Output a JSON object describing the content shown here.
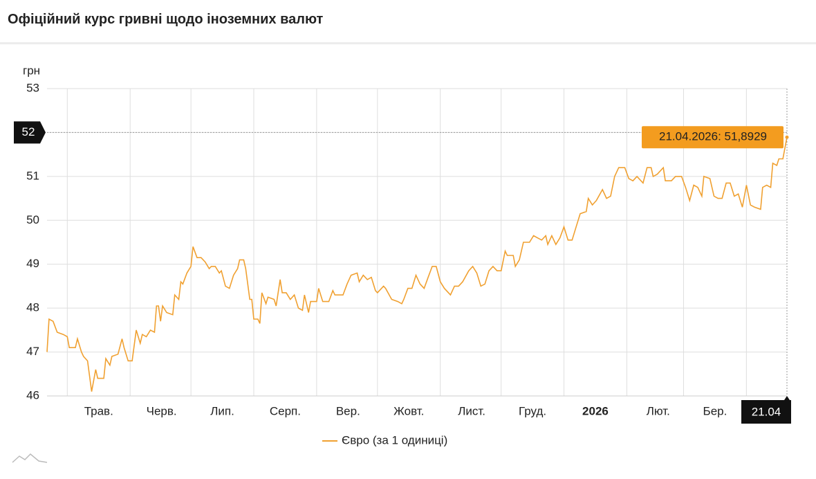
{
  "title": "Офіційний курс гривні щодо іноземних валют",
  "chart_data": {
    "type": "line",
    "y_label": "грн",
    "x": [
      0,
      1,
      3,
      5,
      8,
      10,
      11,
      14,
      15,
      17,
      18,
      20,
      22,
      24,
      25,
      28,
      29,
      31,
      32,
      35,
      37,
      38,
      40,
      42,
      44,
      46,
      47,
      49,
      51,
      53,
      54,
      55,
      56,
      57,
      59,
      62,
      63,
      65,
      66,
      67,
      69,
      71,
      72,
      74,
      76,
      78,
      80,
      81,
      83,
      85,
      86,
      88,
      90,
      92,
      94,
      95,
      97,
      98,
      100,
      101,
      102,
      104,
      105,
      106,
      108,
      109,
      112,
      113,
      115,
      116,
      118,
      120,
      122,
      124,
      126,
      127,
      129,
      130,
      133,
      134,
      136,
      139,
      141,
      142,
      146,
      148,
      150,
      153,
      154,
      156,
      158,
      160,
      162,
      163,
      166,
      167,
      170,
      173,
      175,
      176,
      178,
      180,
      182,
      184,
      186,
      188,
      190,
      192,
      194,
      196,
      199,
      201,
      203,
      205,
      208,
      210,
      212,
      214,
      216,
      218,
      220,
      222,
      224,
      226,
      227,
      230,
      231,
      233,
      235,
      238,
      240,
      242,
      244,
      246,
      247,
      249,
      251,
      253,
      255,
      257,
      259,
      261,
      263,
      266,
      267,
      269,
      271,
      274,
      276,
      278,
      280,
      282,
      285,
      287,
      289,
      291,
      294,
      296,
      298,
      299,
      301,
      304,
      305,
      308,
      310,
      313,
      315,
      317,
      319,
      321,
      323,
      324,
      327,
      329,
      331,
      333,
      335,
      337,
      339,
      341,
      343,
      345,
      347,
      349,
      352,
      353,
      355,
      357,
      358,
      360,
      361,
      363,
      365
    ],
    "series": [
      {
        "name": "Євро (за 1 одиниці)",
        "color": "#f0a030",
        "values": [
          47.0,
          47.75,
          47.7,
          47.45,
          47.4,
          47.35,
          47.1,
          47.1,
          47.3,
          47.0,
          46.9,
          46.8,
          46.1,
          46.6,
          46.4,
          46.4,
          46.85,
          46.7,
          46.9,
          46.95,
          47.3,
          47.1,
          46.8,
          46.8,
          47.5,
          47.2,
          47.4,
          47.35,
          47.5,
          47.45,
          48.05,
          48.05,
          47.7,
          48.05,
          47.9,
          47.85,
          48.3,
          48.2,
          48.6,
          48.55,
          48.8,
          48.95,
          49.4,
          49.15,
          49.15,
          49.05,
          48.9,
          48.95,
          48.95,
          48.8,
          48.85,
          48.5,
          48.45,
          48.75,
          48.9,
          49.1,
          49.1,
          48.9,
          48.2,
          48.2,
          47.75,
          47.75,
          47.65,
          48.35,
          48.1,
          48.25,
          48.2,
          48.05,
          48.65,
          48.35,
          48.35,
          48.2,
          48.3,
          48.0,
          47.95,
          48.3,
          47.9,
          48.15,
          48.15,
          48.45,
          48.15,
          48.15,
          48.4,
          48.3,
          48.3,
          48.55,
          48.75,
          48.8,
          48.6,
          48.75,
          48.65,
          48.7,
          48.4,
          48.35,
          48.5,
          48.45,
          48.2,
          48.15,
          48.1,
          48.2,
          48.45,
          48.45,
          48.75,
          48.55,
          48.45,
          48.7,
          48.95,
          48.95,
          48.6,
          48.45,
          48.3,
          48.5,
          48.5,
          48.6,
          48.85,
          48.95,
          48.8,
          48.5,
          48.55,
          48.85,
          48.95,
          48.85,
          48.85,
          49.3,
          49.2,
          49.2,
          48.95,
          49.1,
          49.5,
          49.5,
          49.65,
          49.6,
          49.55,
          49.65,
          49.45,
          49.65,
          49.45,
          49.6,
          49.85,
          49.55,
          49.55,
          49.85,
          50.15,
          50.2,
          50.5,
          50.35,
          50.45,
          50.7,
          50.5,
          50.55,
          51.0,
          51.2,
          51.2,
          50.95,
          50.9,
          51.0,
          50.85,
          51.2,
          51.2,
          51.0,
          51.05,
          51.2,
          50.9,
          50.9,
          51.0,
          51.0,
          50.75,
          50.45,
          50.8,
          50.75,
          50.55,
          51.0,
          50.95,
          50.55,
          50.5,
          50.5,
          50.85,
          50.85,
          50.55,
          50.6,
          50.3,
          50.8,
          50.35,
          50.3,
          50.25,
          50.75,
          50.8,
          50.75,
          51.3,
          51.25,
          51.4,
          51.4,
          51.8929
        ]
      }
    ],
    "xlim": [
      0,
      365
    ],
    "xticks": [
      {
        "value": 10,
        "label": "Трав."
      },
      {
        "value": 41,
        "label": "Черв."
      },
      {
        "value": 71,
        "label": "Лип."
      },
      {
        "value": 102,
        "label": "Серп."
      },
      {
        "value": 133,
        "label": "Вер."
      },
      {
        "value": 163,
        "label": "Жовт."
      },
      {
        "value": 194,
        "label": "Лист."
      },
      {
        "value": 224,
        "label": "Груд."
      },
      {
        "value": 255,
        "label": "2026"
      },
      {
        "value": 286,
        "label": "Лют."
      },
      {
        "value": 314,
        "label": "Бер."
      },
      {
        "value": 345,
        "label": null
      }
    ],
    "ylim": [
      46,
      53
    ],
    "yticks": [
      46,
      47,
      48,
      49,
      50,
      51,
      52,
      53
    ],
    "grid": true,
    "legend": "bottom",
    "highlight": {
      "x": 365,
      "x_label": "21.04",
      "label": "21.04.2026: 51,8929"
    }
  }
}
